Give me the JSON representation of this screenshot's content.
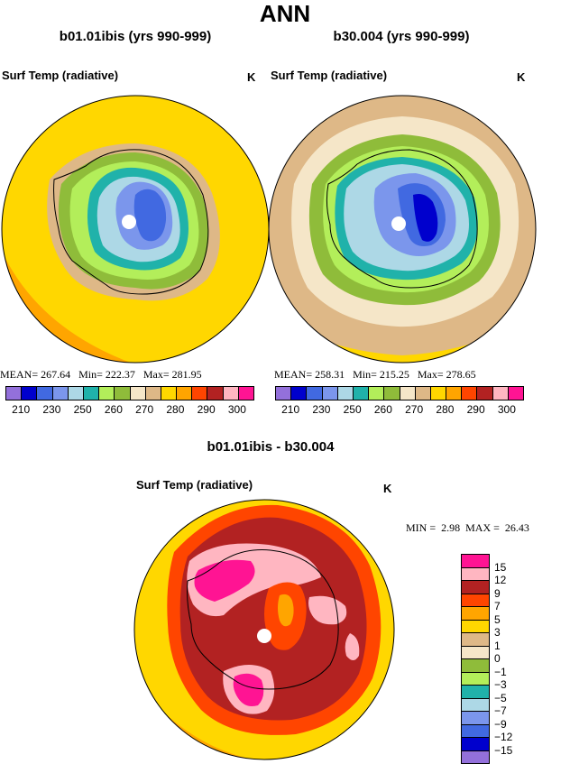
{
  "title": "ANN",
  "panels": [
    {
      "title": "b01.01ibis (yrs 990-999)",
      "variable": "Surf Temp (radiative)",
      "units": "K",
      "stats": {
        "mean_label": "MEAN=",
        "mean": "267.64",
        "min_label": "Min=",
        "min": "222.37",
        "max_label": "Max=",
        "max": "281.95"
      }
    },
    {
      "title": "b30.004 (yrs 990-999)",
      "variable": "Surf Temp (radiative)",
      "units": "K",
      "stats": {
        "mean_label": "MEAN=",
        "mean": "258.31",
        "min_label": "Min=",
        "min": "215.25",
        "max_label": "Max=",
        "max": "278.65"
      }
    }
  ],
  "abs_colorbar": {
    "colors": [
      "#9370db",
      "#0000cd",
      "#4169e1",
      "#7b96ec",
      "#add8e6",
      "#20b2aa",
      "#b3ee5a",
      "#8fbc3a",
      "#f5e6c8",
      "#deb887",
      "#ffd700",
      "#ffa500",
      "#ff4500",
      "#b22222",
      "#ffb6c1",
      "#ff1493"
    ],
    "tick_labels": [
      "210",
      "230",
      "250",
      "260",
      "270",
      "280",
      "290",
      "300"
    ]
  },
  "diff_panel": {
    "title": "b01.01ibis - b30.004",
    "variable": "Surf Temp (radiative)",
    "units": "K",
    "stats": {
      "min_label": "MIN =",
      "min": "2.98",
      "max_label": "MAX =",
      "max": "26.43"
    }
  },
  "diff_colorbar": {
    "colors": [
      "#ff1493",
      "#ffb6c1",
      "#b22222",
      "#ff4500",
      "#ffa500",
      "#ffd700",
      "#deb887",
      "#f5e6c8",
      "#8fbc3a",
      "#b3ee5a",
      "#20b2aa",
      "#add8e6",
      "#7b96ec",
      "#4169e1",
      "#0000cd",
      "#9370db"
    ],
    "tick_labels": [
      "15",
      "12",
      "9",
      "7",
      "5",
      "3",
      "1",
      "0",
      "−1",
      "−3",
      "−5",
      "−7",
      "−9",
      "−12",
      "−15"
    ]
  }
}
